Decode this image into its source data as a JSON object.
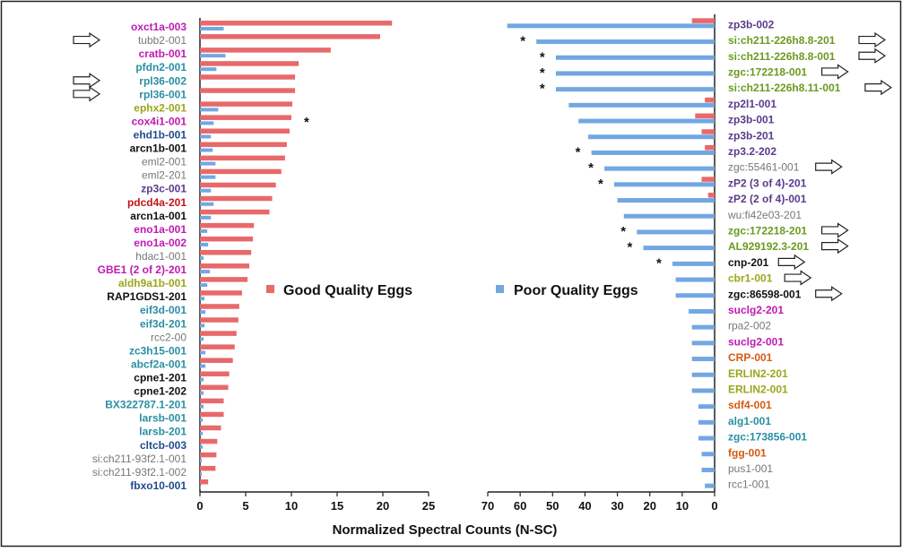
{
  "colors": {
    "good": "#e8696b",
    "poor": "#72a7e1",
    "palette": {
      "magenta": "#c01ab2",
      "teal": "#2a8fa3",
      "olive": "#9aa61a",
      "navy": "#1f4b8c",
      "gray": "#777777",
      "black": "#111111",
      "red": "#c0161c",
      "purple": "#5a3a8c",
      "green": "#6a9a1e",
      "orange": "#d35a12"
    },
    "axis": "#222222"
  },
  "footer": {
    "xlabel": "Normalized Spectral Counts (N-SC)"
  },
  "chart_data": [
    {
      "type": "bar",
      "orientation": "horizontal",
      "legend": {
        "label": "Good Quality Eggs",
        "placement": "middle-right"
      },
      "xlim": [
        0,
        25
      ],
      "xticks": [
        "0",
        "5",
        "10",
        "15",
        "20",
        "25"
      ],
      "categories": [
        "oxct1a-003",
        "tubb2-001",
        "cratb-001",
        "pfdn2-001",
        "rpl36-002",
        "rpl36-001",
        "ephx2-001",
        "cox4i1-001",
        "ehd1b-001",
        "arcn1b-001",
        "eml2-001",
        "eml2-201",
        "zp3c-001",
        "pdcd4a-201",
        "arcn1a-001",
        "eno1a-001",
        "eno1a-002",
        "hdac1-001",
        "GBE1 (2 of 2)-201",
        "aldh9a1b-001",
        "RAP1GDS1-201",
        "eif3d-001",
        "eif3d-201",
        "rcc2-00",
        "zc3h15-001",
        "abcf2a-001",
        "cpne1-201",
        "cpne1-202",
        "BX322787.1-201",
        "larsb-001",
        "larsb-201",
        "cltcb-003",
        "si:ch211-93f2.1-001",
        "si:ch211-93f2.1-002",
        "fbxo10-001"
      ],
      "label_colors": [
        "magenta",
        "gray",
        "magenta",
        "teal",
        "teal",
        "teal",
        "olive",
        "magenta",
        "navy",
        "black",
        "gray",
        "gray",
        "purple",
        "red",
        "black",
        "magenta",
        "magenta",
        "gray",
        "magenta",
        "olive",
        "black",
        "teal",
        "teal",
        "gray",
        "teal",
        "teal",
        "black",
        "black",
        "teal",
        "teal",
        "teal",
        "navy",
        "gray",
        "gray",
        "navy"
      ],
      "series": [
        {
          "name": "Good Quality Eggs",
          "values": [
            21,
            19.7,
            14.3,
            10.8,
            10.4,
            10.4,
            10.1,
            10,
            9.8,
            9.5,
            9.3,
            8.9,
            8.3,
            7.9,
            7.6,
            5.9,
            5.8,
            5.6,
            5.4,
            5.2,
            4.6,
            4.3,
            4.2,
            4,
            3.8,
            3.6,
            3.2,
            3.1,
            2.6,
            2.6,
            2.3,
            1.9,
            1.8,
            1.7,
            0.9
          ]
        },
        {
          "name": "Poor Quality Eggs",
          "values": [
            2.6,
            0,
            2.8,
            1.8,
            0,
            0,
            2,
            1.5,
            1.2,
            1.4,
            1.7,
            1.7,
            1.2,
            1.5,
            1.2,
            0.8,
            0.9,
            0.4,
            1.1,
            0.8,
            0.5,
            0.6,
            0.5,
            0.4,
            0.6,
            0.6,
            0.4,
            0.4,
            0.4,
            0.3,
            0.3,
            0.3,
            0.2,
            0.2,
            0.1
          ]
        }
      ],
      "arrows": [
        1,
        4,
        5
      ],
      "stars": [
        7
      ]
    },
    {
      "type": "bar",
      "orientation": "horizontal",
      "legend": {
        "label": "Poor Quality Eggs",
        "placement": "middle-left"
      },
      "xlim": [
        0,
        70
      ],
      "x_reversed": true,
      "xticks": [
        "70",
        "60",
        "50",
        "40",
        "30",
        "20",
        "10",
        "0"
      ],
      "categories": [
        "zp3b-002",
        "si:ch211-226h8.8-201",
        "si:ch211-226h8.8-001",
        "zgc:172218-001",
        "si:ch211-226h8.11-001",
        "zp2l1-001",
        "zp3b-001",
        "zp3b-201",
        "zp3.2-202",
        "zgc:55461-001",
        "zP2 (3 of 4)-201",
        "zP2 (2 of 4)-001",
        "wu:fi42e03-201",
        "zgc:172218-201",
        "AL929192.3-201",
        "cnp-201",
        "cbr1-001",
        "zgc:86598-001",
        "suclg2-201",
        "rpa2-002",
        "suclg2-001",
        "CRP-001",
        "ERLIN2-201",
        "ERLIN2-001",
        "sdf4-001",
        "alg1-001",
        "zgc:173856-001",
        "fgg-001",
        "pus1-001",
        "rcc1-001"
      ],
      "label_colors": [
        "purple",
        "green",
        "green",
        "green",
        "green",
        "purple",
        "purple",
        "purple",
        "purple",
        "gray",
        "purple",
        "purple",
        "gray",
        "green",
        "green",
        "black",
        "olive",
        "black",
        "magenta",
        "gray",
        "magenta",
        "orange",
        "olive",
        "olive",
        "orange",
        "teal",
        "teal",
        "orange",
        "gray",
        "gray"
      ],
      "series": [
        {
          "name": "Poor Quality Eggs",
          "values": [
            64,
            55,
            49,
            49,
            49,
            45,
            42,
            39,
            38,
            34,
            31,
            30,
            28,
            24,
            22,
            13,
            12,
            12,
            8,
            7,
            7,
            7,
            7,
            7,
            5,
            5,
            5,
            4,
            4,
            3
          ]
        },
        {
          "name": "Good Quality Eggs",
          "values": [
            7,
            0,
            0,
            0,
            0,
            3,
            6,
            4,
            3,
            0,
            4,
            2,
            0,
            0,
            0,
            0,
            0,
            0,
            0,
            0,
            0,
            0,
            0,
            0,
            0,
            0,
            0,
            0,
            0,
            0
          ]
        }
      ],
      "arrows": [
        1,
        2,
        3,
        4,
        9,
        13,
        14,
        15,
        16,
        17
      ],
      "stars": [
        1,
        2,
        3,
        4,
        8,
        9,
        10,
        13,
        14,
        15
      ]
    }
  ]
}
